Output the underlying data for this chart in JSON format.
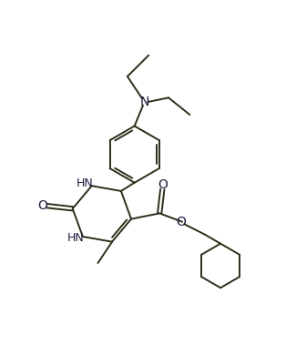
{
  "bg_color": "#ffffff",
  "line_color": "#2d2d1a",
  "text_color": "#1a1a3d",
  "figsize": [
    3.14,
    3.89
  ],
  "dpi": 100,
  "xlim": [
    0,
    10
  ],
  "ylim": [
    0,
    12
  ]
}
